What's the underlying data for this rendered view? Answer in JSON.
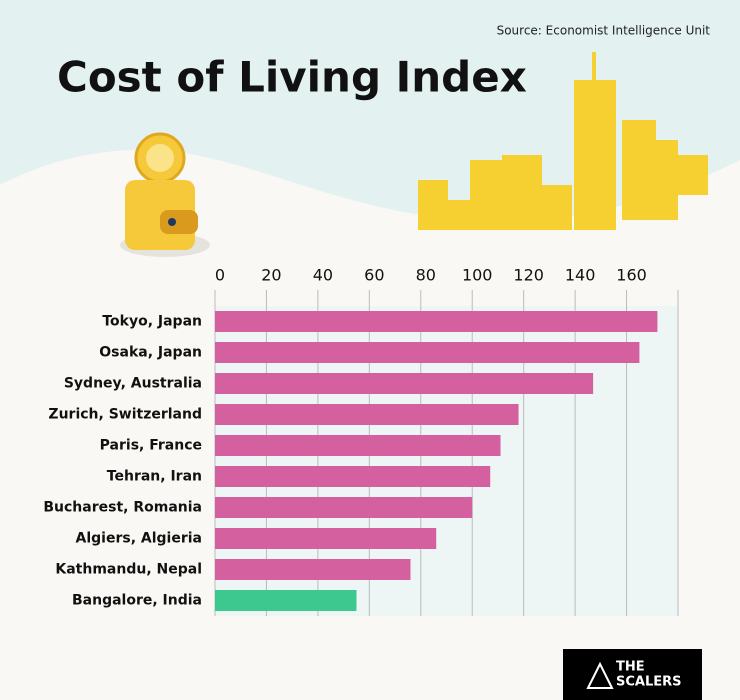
{
  "chart_data": {
    "type": "barh",
    "title": "Cost of Living Index",
    "source": "Source: Economist Intelligence Unit",
    "logo": [
      "THE",
      "SCALERS"
    ],
    "categories": [
      "Tokyo, Japan",
      "Osaka, Japan",
      "Sydney, Australia",
      "Zurich, Switzerland",
      "Paris, France",
      "Tehran, Iran",
      "Bucharest, Romania",
      "Algiers, Algieria",
      "Kathmandu, Nepal",
      "Bangalore, India"
    ],
    "values": [
      172,
      165,
      147,
      118,
      111,
      107,
      100,
      86,
      76,
      55
    ],
    "colors": [
      "#d4609f",
      "#d4609f",
      "#d4609f",
      "#d4609f",
      "#d4609f",
      "#d4609f",
      "#d4609f",
      "#d4609f",
      "#d4609f",
      "#3cc88f"
    ],
    "xlim": [
      0,
      180
    ],
    "xticks": [
      0,
      20,
      40,
      60,
      80,
      100,
      120,
      140,
      160
    ],
    "grid": true
  }
}
